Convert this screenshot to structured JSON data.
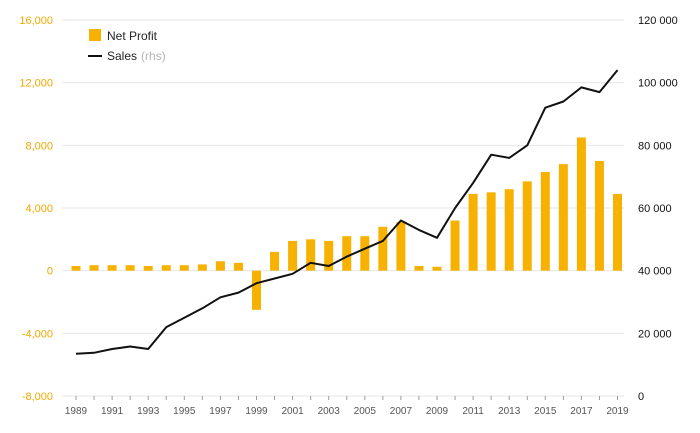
{
  "chart_data": {
    "type": "bar+line",
    "title": "",
    "xlabel": "",
    "ylabel_left": "",
    "ylabel_right": "",
    "x": [
      1989,
      1990,
      1991,
      1992,
      1993,
      1994,
      1995,
      1996,
      1997,
      1998,
      1999,
      2000,
      2001,
      2002,
      2003,
      2004,
      2005,
      2006,
      2007,
      2008,
      2009,
      2010,
      2011,
      2012,
      2013,
      2014,
      2015,
      2016,
      2017,
      2018,
      2019
    ],
    "x_tick_labels": [
      "1989",
      "1991",
      "1993",
      "1995",
      "1997",
      "1999",
      "2001",
      "2003",
      "2005",
      "2007",
      "2009",
      "2011",
      "2013",
      "2015",
      "2017",
      "2019"
    ],
    "left_axis": {
      "ylim": [
        -8000,
        16000
      ],
      "ticks": [
        -8000,
        -4000,
        0,
        4000,
        8000,
        12000,
        16000
      ],
      "tick_labels": [
        "-8,000",
        "-4,000",
        "0",
        "4,000",
        "8,000",
        "12,000",
        "16,000"
      ],
      "color": "#f0a800"
    },
    "right_axis": {
      "ylim": [
        0,
        120000
      ],
      "ticks": [
        0,
        20000,
        40000,
        60000,
        80000,
        100000,
        120000
      ],
      "tick_labels": [
        "0",
        "20 000",
        "40 000",
        "60 000",
        "80 000",
        "100 000",
        "120 000"
      ],
      "color": "#111111"
    },
    "grid": true,
    "legend_position": "top-left",
    "series": [
      {
        "name": "Net Profit",
        "kind": "bar",
        "axis": "left",
        "color": "#f7b100",
        "values": [
          300,
          350,
          350,
          350,
          300,
          350,
          350,
          400,
          600,
          500,
          -2500,
          1200,
          1900,
          2000,
          1900,
          2200,
          2200,
          2800,
          3100,
          300,
          250,
          3200,
          4900,
          5000,
          5200,
          5700,
          6300,
          6800,
          8500,
          7000,
          4900
        ]
      },
      {
        "name": "Sales",
        "name_note": "(rhs)",
        "kind": "line",
        "axis": "right",
        "color": "#111111",
        "values": [
          13500,
          13800,
          15000,
          15800,
          15000,
          22000,
          25000,
          28000,
          31500,
          33000,
          36000,
          37500,
          39000,
          42500,
          41500,
          44500,
          47000,
          49500,
          56000,
          53000,
          50500,
          60000,
          68000,
          77000,
          76000,
          80000,
          92000,
          94000,
          98500,
          97000,
          104000
        ]
      }
    ]
  }
}
